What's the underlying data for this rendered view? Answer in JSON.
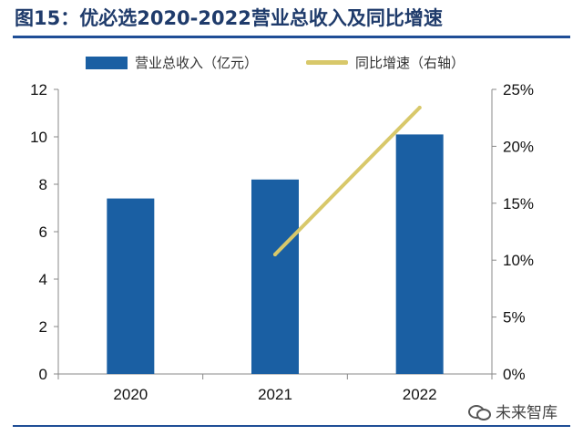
{
  "header": {
    "title": "图15：优必选2020-2022营业总收入及同比增速"
  },
  "colors": {
    "bar": "#1a5fa3",
    "line": "#d8c86a",
    "title": "#1f3b6b",
    "rule": "#1f4e96"
  },
  "watermark": {
    "icon": "chat-bubbles-icon",
    "text": "未来智库"
  },
  "chart_data": {
    "type": "bar",
    "title": "",
    "xlabel": "",
    "ylabel": "",
    "categories": [
      "2020",
      "2021",
      "2022"
    ],
    "ylim": [
      0,
      12
    ],
    "y_ticks": [
      "0",
      "2",
      "4",
      "6",
      "8",
      "10",
      "12"
    ],
    "y2lim": [
      0,
      25
    ],
    "y2_ticks": [
      "0%",
      "5%",
      "10%",
      "15%",
      "20%",
      "25%"
    ],
    "grid": false,
    "legend": "top",
    "series": [
      {
        "name": "营业总收入（亿元）",
        "type": "bar",
        "axis": "left",
        "values": [
          7.4,
          8.2,
          10.1
        ]
      },
      {
        "name": "同比增速（右轴）",
        "type": "line",
        "axis": "right",
        "values": [
          null,
          10.5,
          23.4
        ]
      }
    ]
  }
}
